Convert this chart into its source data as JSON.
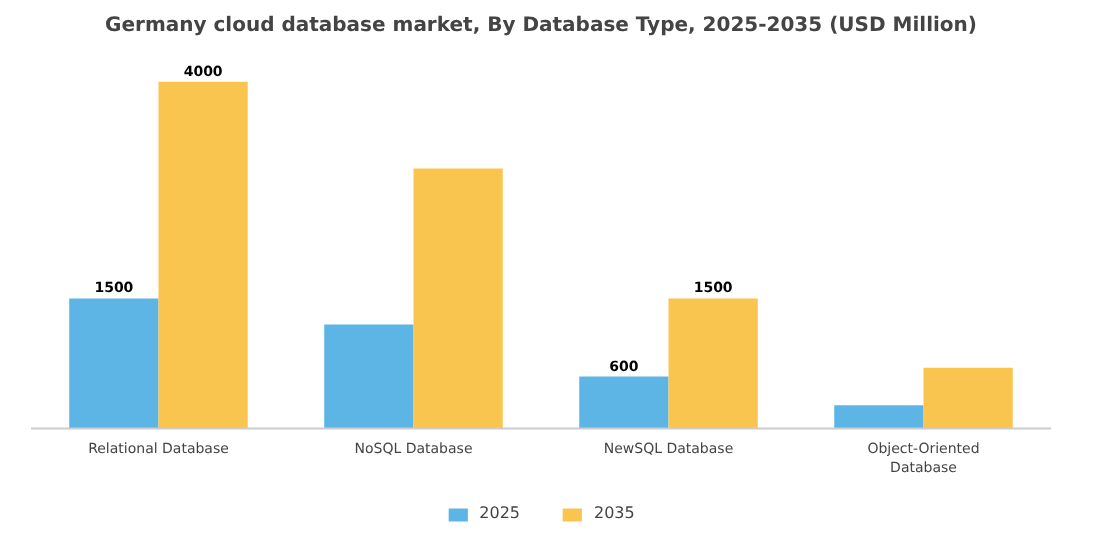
{
  "chart_data": {
    "type": "bar",
    "title": "Germany cloud database market, By Database Type, 2025-2035 (USD Million)",
    "categories": [
      "Relational Database",
      "NoSQL Database",
      "NewSQL Database",
      "Object-Oriented Database"
    ],
    "series": [
      {
        "name": "2025",
        "color": "#5db5e6",
        "values": [
          1500,
          1200,
          600,
          270
        ],
        "value_labels": [
          "1500",
          null,
          "600",
          null
        ]
      },
      {
        "name": "2035",
        "color": "#f9c54e",
        "values": [
          4000,
          3000,
          1500,
          700
        ],
        "value_labels": [
          "4000",
          null,
          "1500",
          null
        ]
      }
    ],
    "grid": false,
    "legend": "bottom"
  }
}
